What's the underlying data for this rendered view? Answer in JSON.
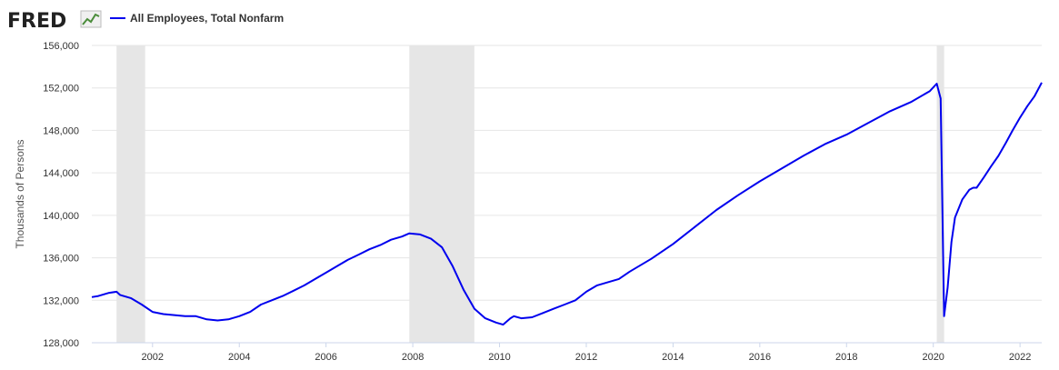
{
  "brand": {
    "logo_text": "FRED",
    "logo_icon": "fred-trend-icon"
  },
  "colors": {
    "series": "#0000ee",
    "recession": "#e6e6e6",
    "grid": "#e6e6e6",
    "text": "#333333"
  },
  "chart_data": {
    "type": "line",
    "title": "",
    "xlabel": "",
    "ylabel": "Thousands of Persons",
    "xlim": [
      2000.6,
      2022.5
    ],
    "ylim": [
      128000,
      156000
    ],
    "grid": "horizontal",
    "legend": "top-left",
    "y_ticks": [
      128000,
      132000,
      136000,
      140000,
      144000,
      148000,
      152000,
      156000
    ],
    "y_tick_labels": [
      "128,000",
      "132,000",
      "136,000",
      "140,000",
      "144,000",
      "148,000",
      "152,000",
      "156,000"
    ],
    "x_ticks": [
      2002,
      2004,
      2006,
      2008,
      2010,
      2012,
      2014,
      2016,
      2018,
      2020,
      2022
    ],
    "x_tick_labels": [
      "2002",
      "2004",
      "2006",
      "2008",
      "2010",
      "2012",
      "2014",
      "2016",
      "2018",
      "2020",
      "2022"
    ],
    "recessions": [
      [
        2001.17,
        2001.83
      ],
      [
        2007.92,
        2009.42
      ],
      [
        2020.08,
        2020.25
      ]
    ],
    "series": [
      {
        "name": "All Employees, Total Nonfarm",
        "x": [
          2000.6,
          2000.75,
          2001.0,
          2001.17,
          2001.25,
          2001.5,
          2001.75,
          2002.0,
          2002.25,
          2002.5,
          2002.75,
          2003.0,
          2003.25,
          2003.5,
          2003.75,
          2004.0,
          2004.25,
          2004.5,
          2004.75,
          2005.0,
          2005.25,
          2005.5,
          2005.75,
          2006.0,
          2006.25,
          2006.5,
          2006.75,
          2007.0,
          2007.25,
          2007.5,
          2007.75,
          2007.92,
          2008.17,
          2008.42,
          2008.67,
          2008.92,
          2009.17,
          2009.42,
          2009.67,
          2009.92,
          2010.08,
          2010.25,
          2010.33,
          2010.5,
          2010.75,
          2011.0,
          2011.25,
          2011.5,
          2011.75,
          2012.0,
          2012.25,
          2012.5,
          2012.75,
          2013.0,
          2013.5,
          2014.0,
          2014.5,
          2015.0,
          2015.5,
          2016.0,
          2016.5,
          2017.0,
          2017.5,
          2018.0,
          2018.5,
          2019.0,
          2019.5,
          2019.92,
          2020.08,
          2020.17,
          2020.25,
          2020.33,
          2020.42,
          2020.5,
          2020.67,
          2020.83,
          2020.92,
          2021.0,
          2021.17,
          2021.33,
          2021.5,
          2021.67,
          2021.83,
          2022.0,
          2022.17,
          2022.33,
          2022.5
        ],
        "values": [
          132300,
          132400,
          132700,
          132800,
          132500,
          132200,
          131600,
          130900,
          130700,
          130600,
          130500,
          130500,
          130200,
          130100,
          130200,
          130500,
          130900,
          131600,
          132000,
          132400,
          132900,
          133400,
          134000,
          134600,
          135200,
          135800,
          136300,
          136800,
          137200,
          137700,
          138000,
          138300,
          138200,
          137800,
          137000,
          135200,
          133000,
          131200,
          130300,
          129900,
          129700,
          130300,
          130500,
          130300,
          130400,
          130800,
          131200,
          131600,
          132000,
          132800,
          133400,
          133700,
          134000,
          134700,
          135900,
          137300,
          138900,
          140500,
          141900,
          143200,
          144400,
          145600,
          146700,
          147600,
          148700,
          149800,
          150700,
          151700,
          152400,
          151000,
          130500,
          133200,
          137500,
          139800,
          141500,
          142400,
          142600,
          142600,
          143600,
          144600,
          145600,
          146800,
          148000,
          149200,
          150300,
          151200,
          152500
        ]
      }
    ]
  }
}
